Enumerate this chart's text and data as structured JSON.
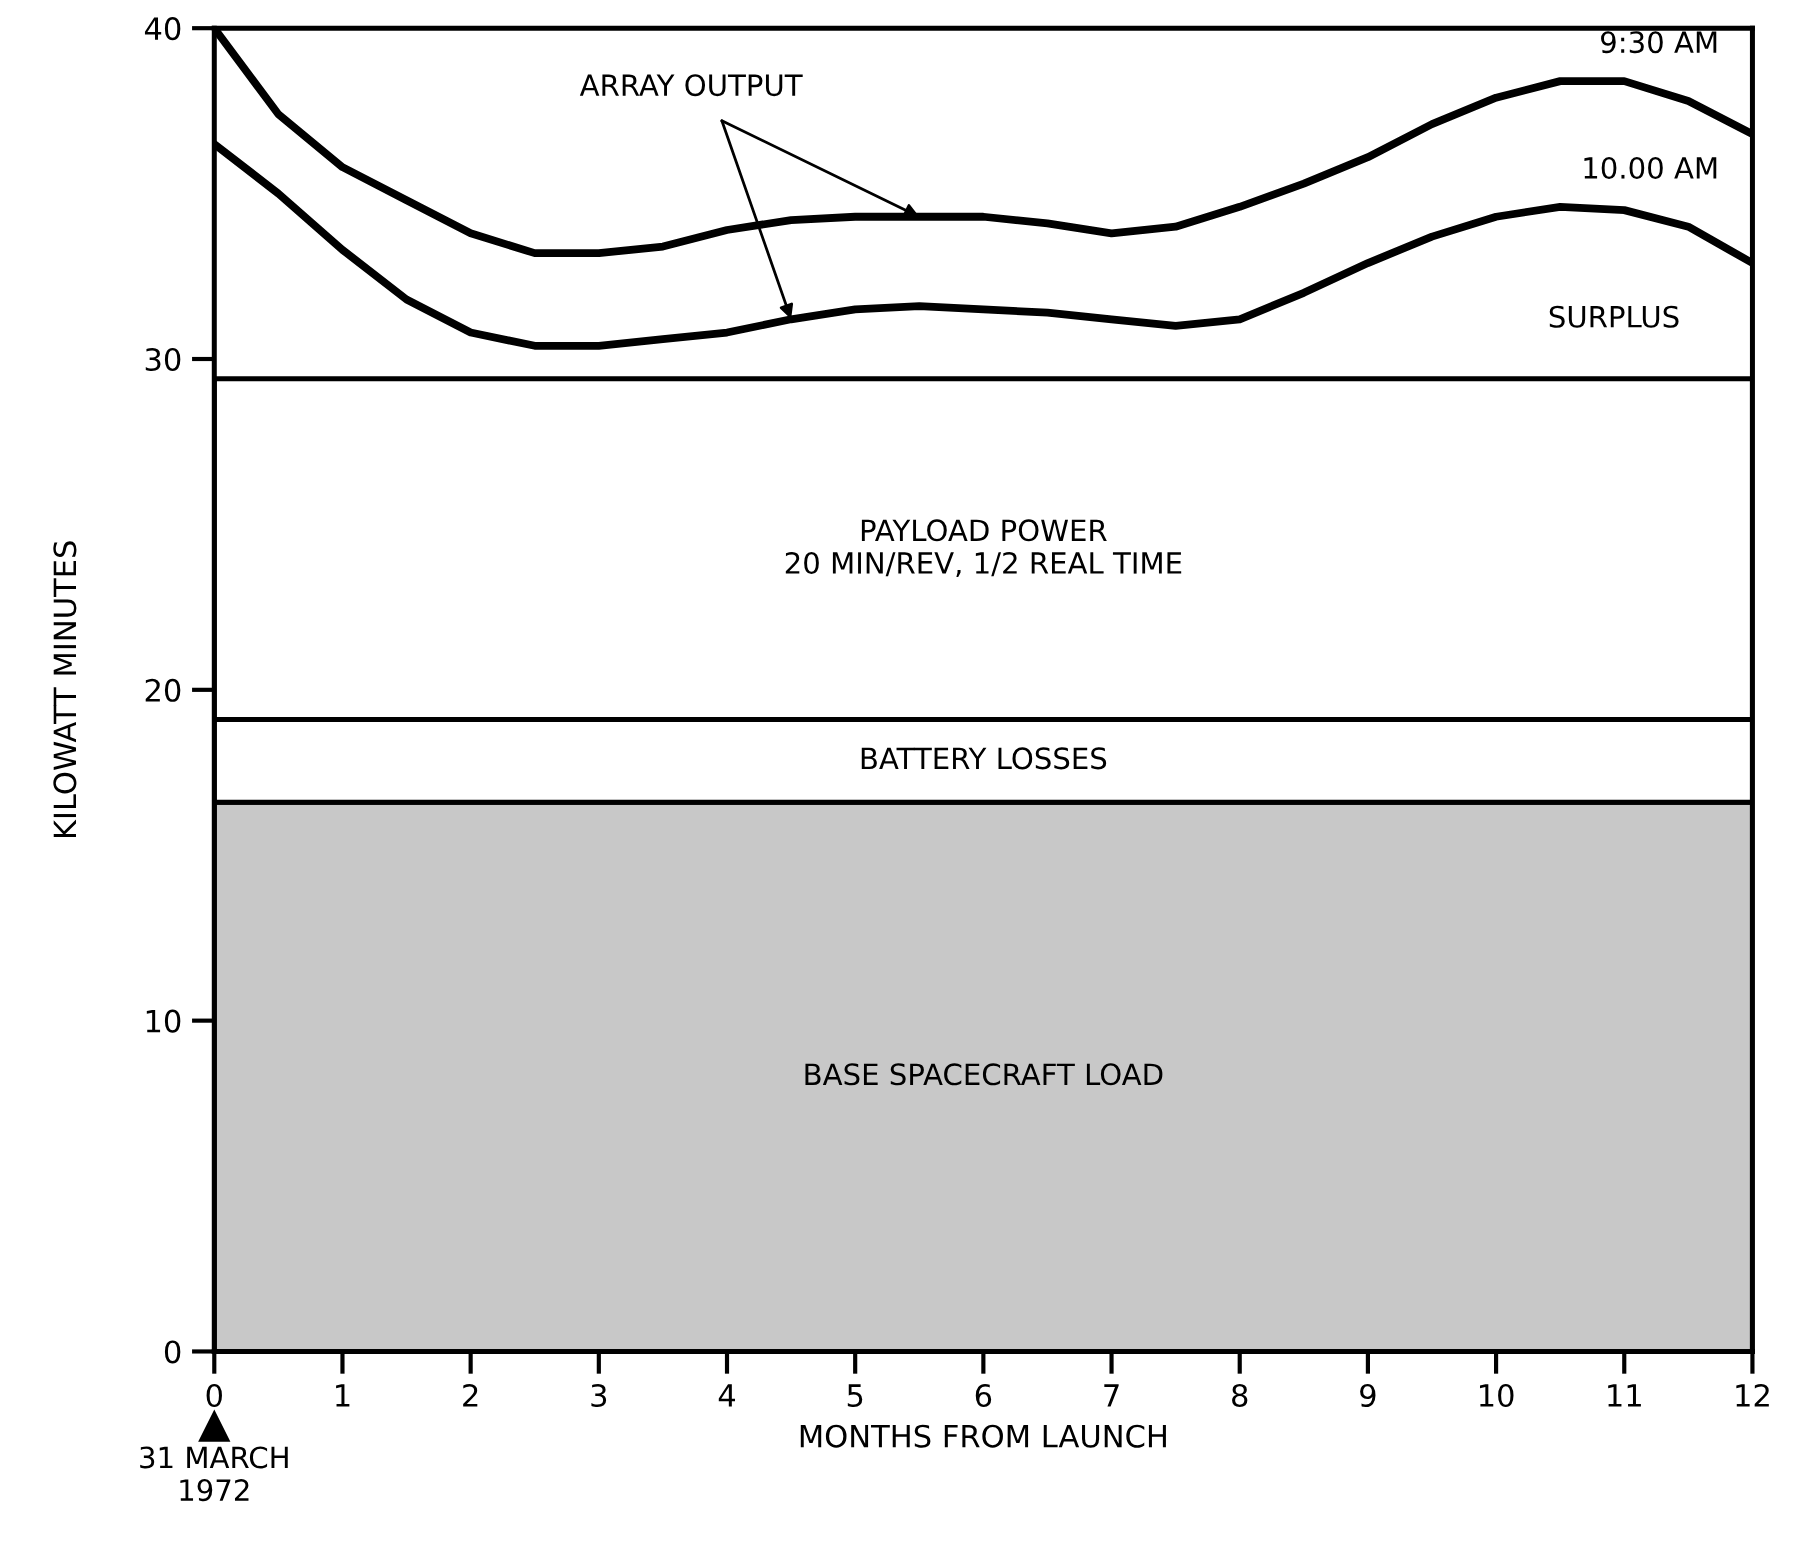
{
  "chart_data": {
    "type": "line",
    "xlabel": "MONTHS FROM LAUNCH",
    "ylabel": "KILOWATT MINUTES",
    "x": [
      0,
      0.5,
      1,
      1.5,
      2,
      2.5,
      3,
      3.5,
      4,
      4.5,
      5,
      5.5,
      6,
      6.5,
      7,
      7.5,
      8,
      8.5,
      9,
      9.5,
      10,
      10.5,
      11,
      11.5,
      12
    ],
    "series": [
      {
        "name": "9:30 AM",
        "color": "#000000",
        "values": [
          40.0,
          37.4,
          35.8,
          34.8,
          33.8,
          33.2,
          33.2,
          33.4,
          33.9,
          34.2,
          34.3,
          34.3,
          34.3,
          34.1,
          33.8,
          34.0,
          34.6,
          35.3,
          36.1,
          37.1,
          37.9,
          38.4,
          38.4,
          37.8,
          36.8
        ]
      },
      {
        "name": "10.00 AM",
        "color": "#000000",
        "values": [
          36.5,
          35.0,
          33.3,
          31.8,
          30.8,
          30.4,
          30.4,
          30.6,
          30.8,
          31.2,
          31.5,
          31.6,
          31.5,
          31.4,
          31.2,
          31.0,
          31.2,
          32.0,
          32.9,
          33.7,
          34.3,
          34.6,
          34.5,
          34.0,
          32.9
        ]
      }
    ],
    "bands": [
      {
        "axis": "y",
        "from": 0,
        "to": 16.6,
        "label": "BASE SPACECRAFT LOAD",
        "color": "#c8c8c8"
      },
      {
        "axis": "y",
        "from": 16.6,
        "to": 19.1,
        "label": "BATTERY LOSSES",
        "color": "#ffffff"
      },
      {
        "axis": "y",
        "from": 19.1,
        "to": 29.4,
        "label": "PAYLOAD POWER\n20 MIN/REV, 1/2 REAL TIME",
        "color": "#ffffff"
      }
    ],
    "annotations": [
      {
        "text": "ARRAY OUTPUT",
        "x": 5.5,
        "y": 34.3
      },
      "SURPLUS",
      "31 MARCH\n1972"
    ],
    "xlim": [
      0,
      12
    ],
    "ylim": [
      0,
      40
    ],
    "xticks": [
      0,
      1,
      2,
      3,
      4,
      5,
      6,
      7,
      8,
      9,
      10,
      11,
      12
    ],
    "yticks": [
      0,
      10,
      20,
      30,
      40
    ],
    "grid": false,
    "legend": false,
    "marker": "none",
    "line_style": "solid"
  }
}
